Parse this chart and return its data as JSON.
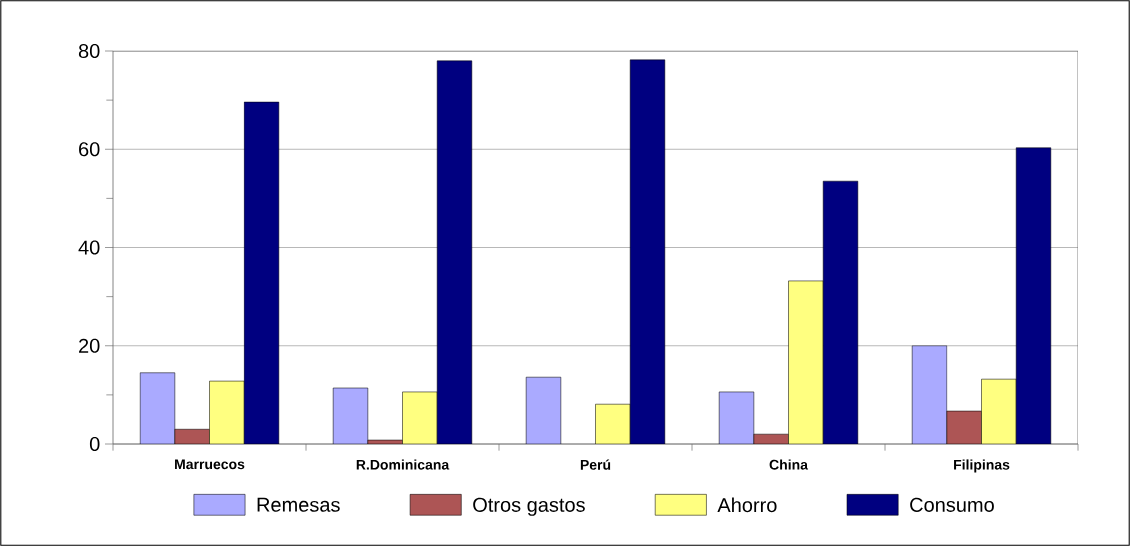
{
  "chart_data": {
    "type": "bar",
    "categories": [
      "Marruecos",
      "R.Dominicana",
      "Perú",
      "China",
      "Filipinas"
    ],
    "series": [
      {
        "name": "Remesas",
        "color": "#aaaaff",
        "values": [
          14.5,
          11.4,
          13.6,
          10.6,
          20.0
        ]
      },
      {
        "name": "Otros gastos",
        "color": "#ad5555",
        "values": [
          3.0,
          0.8,
          null,
          2.0,
          6.7
        ]
      },
      {
        "name": "Ahorro",
        "color": "#ffff80",
        "values": [
          12.8,
          10.6,
          8.1,
          33.2,
          13.2
        ]
      },
      {
        "name": "Consumo",
        "color": "#000080",
        "values": [
          69.6,
          78.0,
          78.2,
          53.5,
          60.3
        ]
      }
    ],
    "ylim": [
      0,
      80
    ],
    "yticks": [
      0,
      20,
      40,
      60,
      80
    ],
    "grid": "y",
    "legend": "bottom"
  }
}
